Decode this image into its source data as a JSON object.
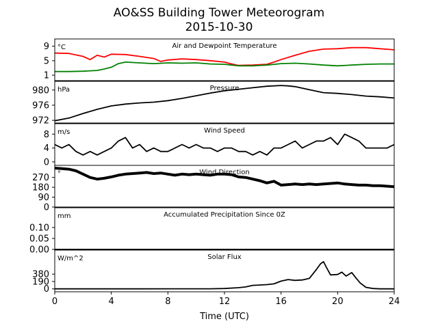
{
  "figure": {
    "title_line1": "AO&SS Building Tower Meteorogram",
    "title_line2": "2015-10-30",
    "xlabel": "Time (UTC)",
    "x_ticks": [
      0,
      4,
      8,
      12,
      16,
      20,
      24
    ],
    "x_ticklabels": [
      "0",
      "4",
      "8",
      "12",
      "16",
      "20",
      "24"
    ],
    "xlim": [
      0,
      24
    ]
  },
  "chart_data": [
    {
      "type": "line",
      "title": "Air and Dewpoint Temperature",
      "unit": "°C",
      "ylim": [
        -0.5,
        11
      ],
      "y_ticks": [
        1,
        5,
        9
      ],
      "y_ticklabels": [
        "1",
        "5",
        "9"
      ],
      "series": [
        {
          "color": "#ff0000",
          "x": [
            0,
            1,
            2,
            2.5,
            3,
            3.5,
            4,
            5,
            6,
            7,
            7.5,
            8,
            9,
            10,
            11,
            12,
            12.5,
            13,
            14,
            15,
            15.5,
            16,
            17,
            18,
            19,
            20,
            21,
            22,
            23,
            24
          ],
          "values": [
            7.1,
            7.0,
            6.2,
            5.3,
            6.5,
            6.0,
            6.8,
            6.7,
            6.2,
            5.6,
            4.8,
            5.2,
            5.5,
            5.3,
            5.0,
            4.6,
            4.1,
            3.7,
            3.8,
            4.0,
            4.6,
            5.3,
            6.5,
            7.6,
            8.2,
            8.3,
            8.6,
            8.6,
            8.3,
            8.0
          ]
        },
        {
          "color": "#008000",
          "x": [
            0,
            1,
            2,
            3,
            3.5,
            4,
            4.5,
            5,
            6,
            7,
            8,
            9,
            10,
            11,
            12,
            13,
            14,
            15,
            16,
            17,
            18,
            19,
            20,
            21,
            22,
            23,
            24
          ],
          "values": [
            2.0,
            2.0,
            2.1,
            2.3,
            2.7,
            3.2,
            4.2,
            4.6,
            4.4,
            4.2,
            4.4,
            4.3,
            4.4,
            4.1,
            4.0,
            3.6,
            3.6,
            3.8,
            4.2,
            4.3,
            4.1,
            3.8,
            3.6,
            3.8,
            4.0,
            4.1,
            4.1
          ]
        }
      ]
    },
    {
      "type": "line",
      "title": "Pressure",
      "unit": "hPa",
      "ylim": [
        971.3,
        982.3
      ],
      "y_ticks": [
        972,
        976,
        980
      ],
      "y_ticklabels": [
        "972",
        "976",
        "980"
      ],
      "series": [
        {
          "color": "#000000",
          "x": [
            0,
            1,
            2,
            3,
            4,
            5,
            6,
            7,
            8,
            9,
            10,
            11,
            12,
            13,
            14,
            15,
            16,
            16.5,
            17,
            18,
            19,
            20,
            21,
            22,
            23,
            24
          ],
          "values": [
            971.9,
            972.6,
            973.8,
            974.9,
            975.8,
            976.3,
            976.6,
            976.8,
            977.2,
            977.8,
            978.5,
            979.2,
            979.8,
            980.2,
            980.6,
            981.0,
            981.2,
            981.1,
            980.9,
            980.1,
            979.3,
            979.1,
            978.8,
            978.4,
            978.2,
            977.9
          ]
        }
      ]
    },
    {
      "type": "line",
      "title": "Wind Speed",
      "unit": "m/s",
      "ylim": [
        -1,
        11
      ],
      "y_ticks": [
        0,
        4,
        8
      ],
      "y_ticklabels": [
        "0",
        "4",
        "8"
      ],
      "series": [
        {
          "color": "#000000",
          "x": [
            0,
            0.5,
            1,
            1.5,
            2,
            2.5,
            3,
            3.5,
            4,
            4.5,
            5,
            5.5,
            6,
            6.5,
            7,
            7.5,
            8,
            8.5,
            9,
            9.5,
            10,
            10.5,
            11,
            11.5,
            12,
            12.5,
            13,
            13.5,
            14,
            14.5,
            15,
            15.5,
            16,
            16.5,
            17,
            17.5,
            18,
            18.5,
            19,
            19.5,
            20,
            20.5,
            21,
            21.5,
            22,
            22.5,
            23,
            23.5,
            24
          ],
          "values": [
            5,
            4,
            5,
            3,
            2,
            3,
            2,
            3,
            4,
            6,
            7,
            4,
            5,
            3,
            4,
            3,
            3,
            4,
            5,
            4,
            5,
            4,
            4,
            3,
            4,
            4,
            3,
            3,
            2,
            3,
            2,
            4,
            4,
            5,
            6,
            4,
            5,
            6,
            6,
            7,
            5,
            8,
            7,
            6,
            4,
            4,
            4,
            4,
            5
          ]
        }
      ]
    },
    {
      "type": "scatter",
      "title": "Wind Direction",
      "unit": "°",
      "ylim": [
        0,
        380
      ],
      "y_ticks": [
        0,
        90,
        180,
        270
      ],
      "y_ticklabels": [
        "0",
        "90",
        "180",
        "270"
      ],
      "series": [
        {
          "color": "#000000",
          "x": [
            0,
            0.5,
            1,
            1.5,
            2,
            2.5,
            3,
            3.5,
            4,
            4.5,
            5,
            5.5,
            6,
            6.5,
            7,
            7.5,
            8,
            8.5,
            9,
            9.5,
            10,
            10.5,
            11,
            11.5,
            12,
            12.5,
            13,
            13.5,
            14,
            14.5,
            15,
            15.5,
            16,
            16.5,
            17,
            17.5,
            18,
            18.5,
            19,
            19.5,
            20,
            20.5,
            21,
            21.5,
            22,
            22.5,
            23,
            23.5,
            24
          ],
          "values": [
            355,
            350,
            345,
            330,
            300,
            270,
            255,
            262,
            275,
            290,
            300,
            305,
            310,
            315,
            305,
            310,
            300,
            290,
            300,
            295,
            300,
            295,
            290,
            300,
            300,
            295,
            275,
            270,
            255,
            240,
            220,
            235,
            200,
            205,
            210,
            205,
            210,
            205,
            210,
            215,
            220,
            210,
            205,
            200,
            200,
            195,
            195,
            190,
            185
          ]
        }
      ]
    },
    {
      "type": "line",
      "title": "Accumulated Precipitation Since 0Z",
      "unit": "mm",
      "ylim": [
        0,
        0.19
      ],
      "y_ticks": [
        0,
        0.05,
        0.1
      ],
      "y_ticklabels": [
        "0.00",
        "0.05",
        "0.10"
      ],
      "series": [
        {
          "color": "#000000",
          "x": [
            0,
            24
          ],
          "values": [
            0,
            0
          ]
        }
      ]
    },
    {
      "type": "line",
      "title": "Solar Flux",
      "unit": "W/m^2",
      "ylim": [
        -75,
        1000
      ],
      "y_ticks": [
        0,
        190,
        380
      ],
      "y_ticklabels": [
        "0",
        "190",
        "380"
      ],
      "series": [
        {
          "color": "#000000",
          "x": [
            0,
            6,
            11,
            12,
            13,
            13.5,
            14,
            14.5,
            15,
            15.5,
            16,
            16.5,
            17,
            17.5,
            18,
            18.5,
            18.8,
            19,
            19.2,
            19.5,
            20,
            20.3,
            20.6,
            21,
            21.3,
            21.6,
            22,
            22.5,
            23,
            24
          ],
          "values": [
            0,
            0,
            2,
            10,
            30,
            50,
            90,
            100,
            110,
            130,
            200,
            240,
            220,
            230,
            270,
            500,
            650,
            700,
            560,
            360,
            370,
            430,
            330,
            420,
            280,
            150,
            40,
            10,
            0,
            0
          ]
        }
      ]
    }
  ]
}
